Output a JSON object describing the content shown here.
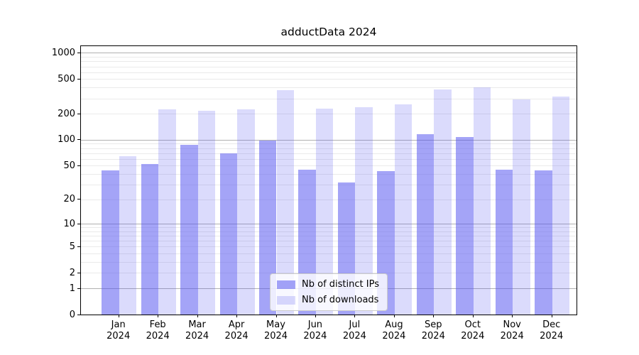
{
  "figure": {
    "title": "adductData 2024"
  },
  "legend": {
    "items": [
      {
        "label": "Nb of distinct IPs",
        "series": "ips"
      },
      {
        "label": "Nb of downloads",
        "series": "downloads"
      }
    ]
  },
  "colors": {
    "ips": "rgba(90,90,240,0.55)",
    "downloads": "rgba(90,90,240,0.22)",
    "major_grid": "#b0b0b0",
    "minor_grid": "#eaeaea",
    "axis": "#000000"
  },
  "chart_data": {
    "type": "bar",
    "title": "adductData 2024",
    "categories": [
      "Jan 2024",
      "Feb 2024",
      "Mar 2024",
      "Apr 2024",
      "May 2024",
      "Jun 2024",
      "Jul 2024",
      "Aug 2024",
      "Sep 2024",
      "Oct 2024",
      "Nov 2024",
      "Dec 2024"
    ],
    "series": [
      {
        "name": "Nb of distinct IPs",
        "key": "ips",
        "values": [
          44,
          52,
          87,
          70,
          97,
          45,
          32,
          43,
          115,
          108,
          45,
          44
        ]
      },
      {
        "name": "Nb of downloads",
        "key": "downloads",
        "values": [
          64,
          225,
          217,
          225,
          374,
          227,
          236,
          257,
          378,
          400,
          293,
          318
        ]
      }
    ],
    "xlabel": "",
    "ylabel": "",
    "yscale": "log1p",
    "yticks": [
      0,
      1,
      2,
      5,
      10,
      20,
      50,
      100,
      200,
      500,
      1000
    ],
    "minor_gridline_values": [
      2,
      3,
      4,
      5,
      6,
      7,
      8,
      9,
      20,
      30,
      40,
      50,
      60,
      70,
      80,
      90,
      200,
      300,
      400,
      500,
      600,
      700,
      800,
      900
    ],
    "major_gridline_values": [
      1,
      10,
      100,
      1000
    ],
    "ylim": [
      0,
      1190
    ],
    "grid": "both",
    "legend_position": "lower center"
  }
}
